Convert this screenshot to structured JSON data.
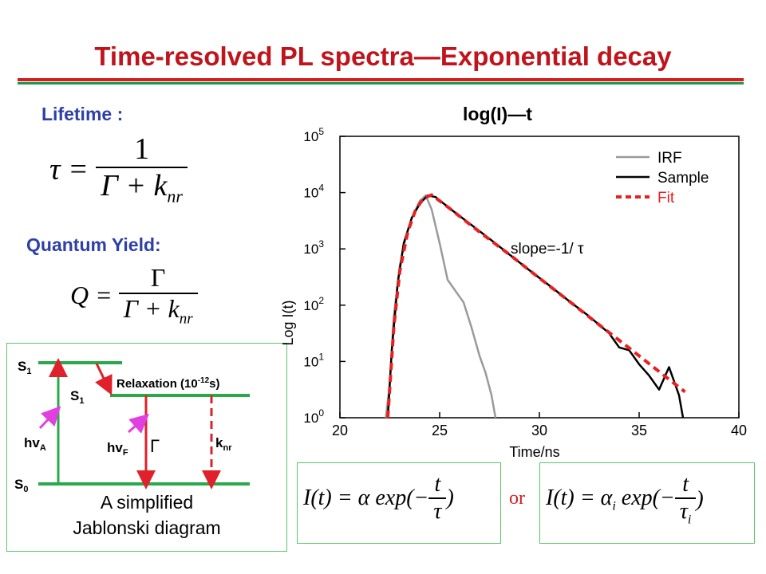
{
  "slide": {
    "title": "Time-resolved PL spectra—Exponential decay",
    "lifetime_label": "Lifetime :",
    "quantum_yield_label": "Quantum Yield:",
    "lifetime_formula": {
      "lhs": "τ =",
      "numerator": "1",
      "denominator": "Γ + k",
      "sub": "nr"
    },
    "qy_formula": {
      "lhs": "Q =",
      "numerator": "Γ",
      "denominator": "Γ + k",
      "sub": "nr"
    },
    "or_text": "or"
  },
  "jablonski": {
    "s1_upper": "S",
    "s1_upper_sub": "1",
    "s1_relaxed": "S",
    "s1_relaxed_sub": "1",
    "s0": "S",
    "s0_sub": "0",
    "relaxation": "Relaxation (10",
    "relaxation_exp": "-12",
    "relaxation_end": "s)",
    "hv_a": "hv",
    "hv_a_sub": "A",
    "hv_f": "hv",
    "hv_f_sub": "F",
    "gamma": "Γ",
    "k_nr": "k",
    "k_nr_sub": "nr",
    "caption_line1": "A simplified",
    "caption_line2": "Jablonski diagram",
    "colors": {
      "level": "#2aa84a",
      "relax_arrow": "#e0202a",
      "emission_arrow": "#e0202a",
      "nonrad_arrow": "#e0202a",
      "photon": "#e040e0"
    }
  },
  "equations": {
    "single": {
      "lhs": "I(t) = α exp(−",
      "num": "t",
      "den": "τ",
      "close": ")"
    },
    "multi": {
      "lhs": "I(t) = α",
      "lhs_sub": "i",
      "exp": " exp(−",
      "num": "t",
      "den": "τ",
      "den_sub": "i",
      "close": ")"
    }
  },
  "chart_data": {
    "type": "line",
    "title": "log(I)—t",
    "xlabel": "Time/ns",
    "ylabel": "Log I(t)",
    "xlim": [
      20,
      40
    ],
    "ylim": [
      0,
      5
    ],
    "y_scale": "log10",
    "x_ticks": [
      "20",
      "25",
      "30",
      "35",
      "40"
    ],
    "y_ticks": [
      {
        "base": "10",
        "exp": "0"
      },
      {
        "base": "10",
        "exp": "1"
      },
      {
        "base": "10",
        "exp": "2"
      },
      {
        "base": "10",
        "exp": "3"
      },
      {
        "base": "10",
        "exp": "4"
      },
      {
        "base": "10",
        "exp": "5"
      }
    ],
    "grid": false,
    "legend_position": "top-right",
    "annotation": "slope=-1/ τ",
    "series": [
      {
        "name": "IRF",
        "color": "#9a9a9a",
        "style": "solid",
        "x": [
          22.3,
          22.5,
          22.7,
          23.0,
          23.3,
          23.6,
          24.0,
          24.3,
          24.6,
          25.0,
          25.4,
          25.8,
          26.2,
          26.6,
          27.0,
          27.3,
          27.6,
          27.8
        ],
        "y": [
          0.0,
          0.6,
          1.8,
          2.7,
          3.2,
          3.55,
          3.85,
          3.95,
          3.7,
          3.1,
          2.45,
          2.25,
          2.05,
          1.6,
          1.1,
          0.8,
          0.4,
          0.0
        ]
      },
      {
        "name": "Sample",
        "color": "#000000",
        "style": "solid",
        "x": [
          22.4,
          22.6,
          22.9,
          23.2,
          23.6,
          24.0,
          24.4,
          24.8,
          25.5,
          26.5,
          27.5,
          28.5,
          29.5,
          30.5,
          31.5,
          32.5,
          33.5,
          34.0,
          34.5,
          35.0,
          35.5,
          36.0,
          36.5,
          37.0,
          37.2
        ],
        "y": [
          0.0,
          1.2,
          2.4,
          3.1,
          3.55,
          3.8,
          3.95,
          3.92,
          3.72,
          3.45,
          3.18,
          2.9,
          2.62,
          2.35,
          2.07,
          1.8,
          1.5,
          1.25,
          1.2,
          0.95,
          0.75,
          0.5,
          0.9,
          0.4,
          0.0
        ]
      },
      {
        "name": "Fit",
        "color": "#e82020",
        "style": "dashed",
        "x": [
          22.4,
          22.7,
          23.0,
          23.4,
          23.8,
          24.2,
          24.6,
          25.5,
          27.0,
          28.5,
          30.0,
          31.5,
          33.0,
          34.5,
          36.0,
          37.3
        ],
        "y": [
          0.0,
          1.6,
          2.6,
          3.3,
          3.7,
          3.9,
          3.96,
          3.72,
          3.3,
          2.9,
          2.48,
          2.07,
          1.65,
          1.24,
          0.82,
          0.46
        ]
      }
    ]
  }
}
